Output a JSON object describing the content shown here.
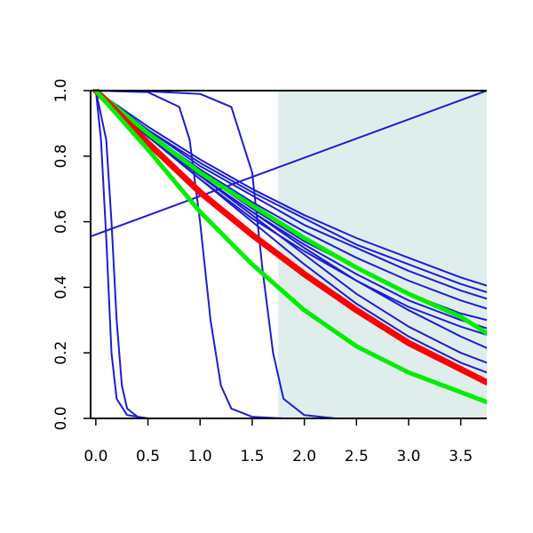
{
  "chart_data": {
    "type": "line",
    "title": "",
    "xlabel": "",
    "ylabel": "",
    "xlim": [
      -0.05,
      3.75
    ],
    "ylim": [
      0.0,
      1.0
    ],
    "x_ticks": [
      0.0,
      0.5,
      1.0,
      1.5,
      2.0,
      2.5,
      3.0,
      3.5
    ],
    "x_tick_labels": [
      "0.0",
      "0.5",
      "1.0",
      "1.5",
      "2.0",
      "2.5",
      "3.0",
      "3.5"
    ],
    "y_ticks": [
      0.0,
      0.2,
      0.4,
      0.6,
      0.8,
      1.0
    ],
    "y_tick_labels": [
      "0.0",
      "0.2",
      "0.4",
      "0.6",
      "0.8",
      "1.0"
    ],
    "shaded_region": {
      "x_start": 1.75,
      "x_end": 3.75,
      "color": "#e0eded"
    },
    "grid": false,
    "legend": "none",
    "colors": {
      "blue": "#1c1cd6",
      "red": "#ff0000",
      "green": "#00ee00",
      "shade": "#e0eded"
    },
    "series": [
      {
        "color": "blue",
        "x": [
          0,
          0.05,
          0.1,
          0.15,
          0.2,
          0.3,
          0.5
        ],
        "y": [
          1.0,
          0.85,
          0.55,
          0.2,
          0.06,
          0.01,
          0.0
        ]
      },
      {
        "color": "blue",
        "x": [
          0,
          0.1,
          0.15,
          0.2,
          0.25,
          0.3,
          0.4,
          0.5
        ],
        "y": [
          1.0,
          0.85,
          0.6,
          0.3,
          0.1,
          0.03,
          0.005,
          0.0
        ]
      },
      {
        "color": "blue",
        "x": [
          0,
          0.5,
          0.8,
          0.9,
          1.0,
          1.1,
          1.2,
          1.3,
          1.5,
          1.8
        ],
        "y": [
          1.0,
          0.995,
          0.95,
          0.85,
          0.6,
          0.3,
          0.1,
          0.03,
          0.005,
          0.0
        ]
      },
      {
        "color": "blue",
        "x": [
          0,
          0.5,
          1.0,
          1.3,
          1.5,
          1.6,
          1.7,
          1.8,
          2.0,
          2.3
        ],
        "y": [
          1.0,
          0.998,
          0.99,
          0.95,
          0.75,
          0.45,
          0.2,
          0.06,
          0.01,
          0.0
        ]
      },
      {
        "color": "blue",
        "x": [
          -0.05,
          3.75
        ],
        "y": [
          0.555,
          1.0
        ]
      },
      {
        "color": "blue",
        "x": [
          0,
          0.5,
          1.0,
          1.5,
          2.0,
          2.5,
          3.0,
          3.5,
          3.75
        ],
        "y": [
          1.0,
          0.89,
          0.79,
          0.7,
          0.62,
          0.55,
          0.49,
          0.43,
          0.405
        ]
      },
      {
        "color": "blue",
        "x": [
          0,
          0.5,
          1.0,
          1.5,
          2.0,
          2.5,
          3.0,
          3.5,
          3.75
        ],
        "y": [
          1.0,
          0.88,
          0.78,
          0.69,
          0.61,
          0.53,
          0.47,
          0.41,
          0.385
        ]
      },
      {
        "color": "blue",
        "x": [
          0,
          0.5,
          1.0,
          1.5,
          2.0,
          2.5,
          3.0,
          3.5,
          3.75
        ],
        "y": [
          1.0,
          0.88,
          0.77,
          0.68,
          0.59,
          0.52,
          0.45,
          0.39,
          0.365
        ]
      },
      {
        "color": "blue",
        "x": [
          0,
          0.5,
          1.0,
          1.5,
          2.0,
          2.5,
          3.0,
          3.5,
          3.75
        ],
        "y": [
          1.0,
          0.87,
          0.76,
          0.66,
          0.57,
          0.49,
          0.42,
          0.36,
          0.335
        ]
      },
      {
        "color": "blue",
        "x": [
          0,
          0.5,
          1.0,
          1.5,
          2.0,
          2.5,
          3.0,
          3.5,
          3.75
        ],
        "y": [
          1.0,
          0.87,
          0.75,
          0.64,
          0.54,
          0.46,
          0.38,
          0.32,
          0.3
        ]
      },
      {
        "color": "blue",
        "x": [
          0,
          0.5,
          1.0,
          1.5,
          2.0,
          2.5,
          3.0,
          3.5,
          3.75
        ],
        "y": [
          1.0,
          0.86,
          0.74,
          0.63,
          0.53,
          0.44,
          0.36,
          0.3,
          0.275
        ]
      },
      {
        "color": "blue",
        "x": [
          0,
          0.5,
          1.0,
          1.5,
          2.0,
          2.5,
          3.0,
          3.5,
          3.75
        ],
        "y": [
          1.0,
          0.86,
          0.73,
          0.61,
          0.51,
          0.42,
          0.34,
          0.28,
          0.255
        ]
      },
      {
        "color": "blue",
        "x": [
          0,
          0.5,
          1.0,
          1.5,
          2.0,
          2.5,
          3.0,
          3.5,
          3.75
        ],
        "y": [
          1.0,
          0.86,
          0.74,
          0.63,
          0.52,
          0.42,
          0.33,
          0.25,
          0.215
        ]
      },
      {
        "color": "blue",
        "x": [
          0,
          0.5,
          1.0,
          1.5,
          2.0,
          2.5,
          3.0,
          3.5,
          3.75
        ],
        "y": [
          1.0,
          0.86,
          0.74,
          0.62,
          0.5,
          0.38,
          0.28,
          0.2,
          0.17
        ]
      },
      {
        "color": "blue",
        "x": [
          0,
          0.5,
          1.0,
          1.5,
          2.0,
          2.5,
          3.0,
          3.5,
          3.75
        ],
        "y": [
          1.0,
          0.86,
          0.73,
          0.6,
          0.47,
          0.35,
          0.25,
          0.17,
          0.14
        ]
      },
      {
        "color": "green",
        "x": [
          0,
          0.5,
          1.0,
          1.5,
          2.0,
          2.5,
          3.0,
          3.5,
          3.75
        ],
        "y": [
          1.0,
          0.87,
          0.75,
          0.65,
          0.55,
          0.46,
          0.38,
          0.31,
          0.26
        ]
      },
      {
        "color": "red",
        "x": [
          0,
          0.5,
          1.0,
          1.5,
          2.0,
          2.5,
          3.0,
          3.5,
          3.75
        ],
        "y": [
          1.0,
          0.84,
          0.69,
          0.56,
          0.44,
          0.33,
          0.23,
          0.15,
          0.11
        ]
      },
      {
        "color": "green",
        "x": [
          0,
          0.5,
          1.0,
          1.5,
          2.0,
          2.5,
          3.0,
          3.5,
          3.75
        ],
        "y": [
          1.0,
          0.82,
          0.63,
          0.47,
          0.33,
          0.22,
          0.14,
          0.08,
          0.05
        ]
      }
    ]
  }
}
